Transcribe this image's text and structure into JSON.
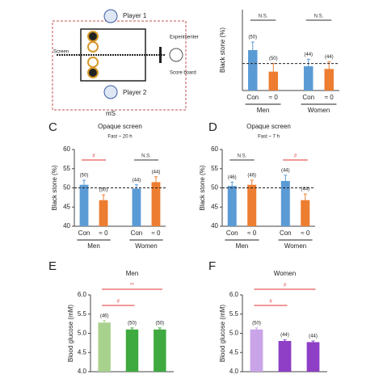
{
  "diagram": {
    "player_1": "Player 1",
    "player_2": "Player 2",
    "screen": "Screen",
    "experimenter": "Experimenter",
    "score_board": "Score board",
    "condition": "mS"
  },
  "chart_data": [
    {
      "type": "bar",
      "y_label": "Black stone (%)",
      "ylim": [
        45,
        60
      ],
      "reference_line": 50,
      "categories": [
        "Con",
        "≈ 0",
        "Con",
        "≈ 0"
      ],
      "groups": [
        "Men",
        "Women"
      ],
      "group_of": [
        0,
        0,
        1,
        1
      ],
      "values": [
        52.5,
        48.5,
        49.5,
        49
      ],
      "errors": [
        1.5,
        1.5,
        1.3,
        1.3
      ],
      "colors": [
        "#5b9bd5",
        "#ed7d31",
        "#5b9bd5",
        "#ed7d31"
      ],
      "n_labels": [
        "(50)",
        "(50)",
        "(44)",
        "(44)"
      ],
      "comparisons": [
        {
          "label": "N.S.",
          "from": 0,
          "to": 1,
          "color": "#333333"
        },
        {
          "label": "N.S.",
          "from": 2,
          "to": 3,
          "color": "#333333"
        }
      ]
    },
    {
      "type": "bar",
      "label": "C",
      "title": "Opaque screen",
      "subtitle": "Fast ~ 20 h",
      "y_label": "Black stone (%)",
      "ylim": [
        40,
        60
      ],
      "yticks": [
        40,
        45,
        50,
        55,
        60
      ],
      "reference_line": 50,
      "categories": [
        "Con",
        "≈ 0",
        "Con",
        "≈ 0"
      ],
      "groups": [
        "Men",
        "Women"
      ],
      "group_of": [
        0,
        0,
        1,
        1
      ],
      "values": [
        50.8,
        46.8,
        49.8,
        51.5
      ],
      "errors": [
        1.2,
        1.4,
        1.0,
        1.4
      ],
      "colors": [
        "#5b9bd5",
        "#ed7d31",
        "#5b9bd5",
        "#ed7d31"
      ],
      "n_labels": [
        "(50)",
        "(50)",
        "(44)",
        "(44)"
      ],
      "comparisons": [
        {
          "label": "#",
          "from": 0,
          "to": 1,
          "color": "#e03030"
        },
        {
          "label": "N.S.",
          "from": 2,
          "to": 3,
          "color": "#333333"
        }
      ]
    },
    {
      "type": "bar",
      "label": "D",
      "title": "Opaque screen",
      "subtitle": "Fast ~ 7 h",
      "y_label": "Black stone (%)",
      "ylim": [
        40,
        60
      ],
      "yticks": [
        40,
        45,
        50,
        55,
        60
      ],
      "reference_line": 50,
      "categories": [
        "Con",
        "≈ 0",
        "Con",
        "≈ 0"
      ],
      "groups": [
        "Men",
        "Women"
      ],
      "group_of": [
        0,
        0,
        1,
        1
      ],
      "values": [
        50.5,
        50.8,
        51.8,
        46.8
      ],
      "errors": [
        1.0,
        1.2,
        1.5,
        1.6
      ],
      "colors": [
        "#5b9bd5",
        "#ed7d31",
        "#5b9bd5",
        "#ed7d31"
      ],
      "n_labels": [
        "(46)",
        "(46)",
        "(44)",
        "(44)"
      ],
      "comparisons": [
        {
          "label": "N.S.",
          "from": 0,
          "to": 1,
          "color": "#333333"
        },
        {
          "label": "#",
          "from": 2,
          "to": 3,
          "color": "#e03030"
        }
      ]
    },
    {
      "type": "bar",
      "label": "E",
      "title": "Men",
      "y_label": "Blood glucose (mM)",
      "ylim": [
        4.0,
        6.0
      ],
      "yticks": [
        {
          "value": 4,
          "label": "4.0"
        },
        4.5,
        {
          "value": 5,
          "label": "5.0"
        },
        5.5,
        {
          "value": 6,
          "label": "6.0"
        }
      ],
      "values": [
        5.28,
        5.1,
        5.1
      ],
      "errors": [
        0.05,
        0.04,
        0.04
      ],
      "colors": [
        "#a9d18e",
        "#3faa3f",
        "#3faa3f"
      ],
      "n_labels": [
        "(46)",
        "(50)",
        "(50)"
      ],
      "comparisons": [
        {
          "label": "#",
          "from": 0,
          "to": 1,
          "color": "#e03030"
        },
        {
          "label": "**",
          "from": 0,
          "to": 2,
          "color": "#e03030"
        }
      ]
    },
    {
      "type": "bar",
      "label": "F",
      "title": "Women",
      "y_label": "Blood glucose (mM)",
      "ylim": [
        4.0,
        6.0
      ],
      "yticks": [
        {
          "value": 4,
          "label": "4.0"
        },
        4.5,
        {
          "value": 5,
          "label": "5.0"
        },
        5.5,
        {
          "value": 6,
          "label": "6.0"
        }
      ],
      "values": [
        5.1,
        4.8,
        4.77
      ],
      "errors": [
        0.04,
        0.03,
        0.03
      ],
      "colors": [
        "#c9a4e8",
        "#8e3fc6",
        "#8e3fc6"
      ],
      "n_labels": [
        "(50)",
        "(44)",
        "(44)"
      ],
      "comparisons": [
        {
          "label": "#",
          "from": 0,
          "to": 1,
          "color": "#e03030"
        },
        {
          "label": "#",
          "from": 0,
          "to": 2,
          "color": "#e03030"
        }
      ]
    }
  ]
}
